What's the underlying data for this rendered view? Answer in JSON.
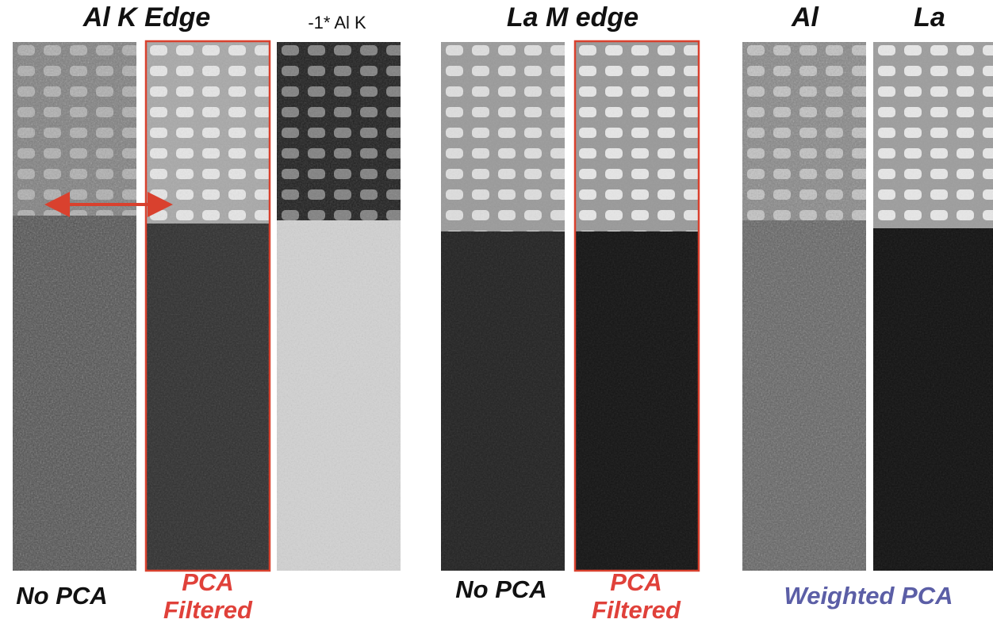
{
  "headers": {
    "al_k_edge": "Al K Edge",
    "neg_al_k": "-1* Al K",
    "la_m_edge": "La M edge",
    "al": "Al",
    "la": "La"
  },
  "labels": {
    "no_pca_1": "No PCA",
    "pca_filtered_1": [
      "PCA",
      "Filtered"
    ],
    "no_pca_2": "No PCA",
    "pca_filtered_2": [
      "PCA",
      "Filtered"
    ],
    "weighted_pca": "Weighted PCA"
  }
}
